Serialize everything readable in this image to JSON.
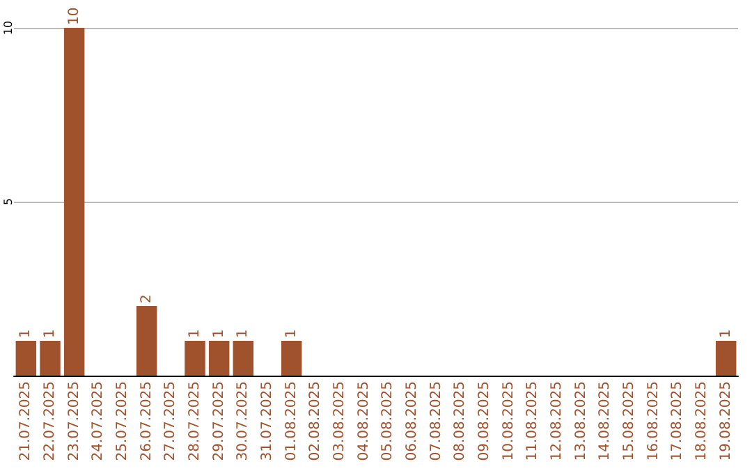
{
  "chart_data": {
    "type": "bar",
    "categories": [
      "21.07.2025",
      "22.07.2025",
      "23.07.2025",
      "24.07.2025",
      "25.07.2025",
      "26.07.2025",
      "27.07.2025",
      "28.07.2025",
      "29.07.2025",
      "30.07.2025",
      "31.07.2025",
      "01.08.2025",
      "02.08.2025",
      "03.08.2025",
      "04.08.2025",
      "05.08.2025",
      "06.08.2025",
      "07.08.2025",
      "08.08.2025",
      "09.08.2025",
      "10.08.2025",
      "11.08.2025",
      "12.08.2025",
      "13.08.2025",
      "14.08.2025",
      "15.08.2025",
      "16.08.2025",
      "17.08.2025",
      "18.08.2025",
      "19.08.2025"
    ],
    "values": [
      1,
      1,
      10,
      0,
      0,
      2,
      0,
      1,
      1,
      1,
      0,
      1,
      0,
      0,
      0,
      0,
      0,
      0,
      0,
      0,
      0,
      0,
      0,
      0,
      0,
      0,
      0,
      0,
      0,
      1
    ],
    "value_labels": [
      "1",
      "1",
      "10",
      null,
      null,
      "2",
      null,
      "1",
      "1",
      "1",
      null,
      "1",
      null,
      null,
      null,
      null,
      null,
      null,
      null,
      null,
      null,
      null,
      null,
      null,
      null,
      null,
      null,
      null,
      null,
      "1"
    ],
    "color": "#a0522d",
    "ylim": [
      0,
      10
    ],
    "yticks": [
      {
        "value": 0,
        "label": null
      },
      5,
      10
    ],
    "grid": "y"
  }
}
